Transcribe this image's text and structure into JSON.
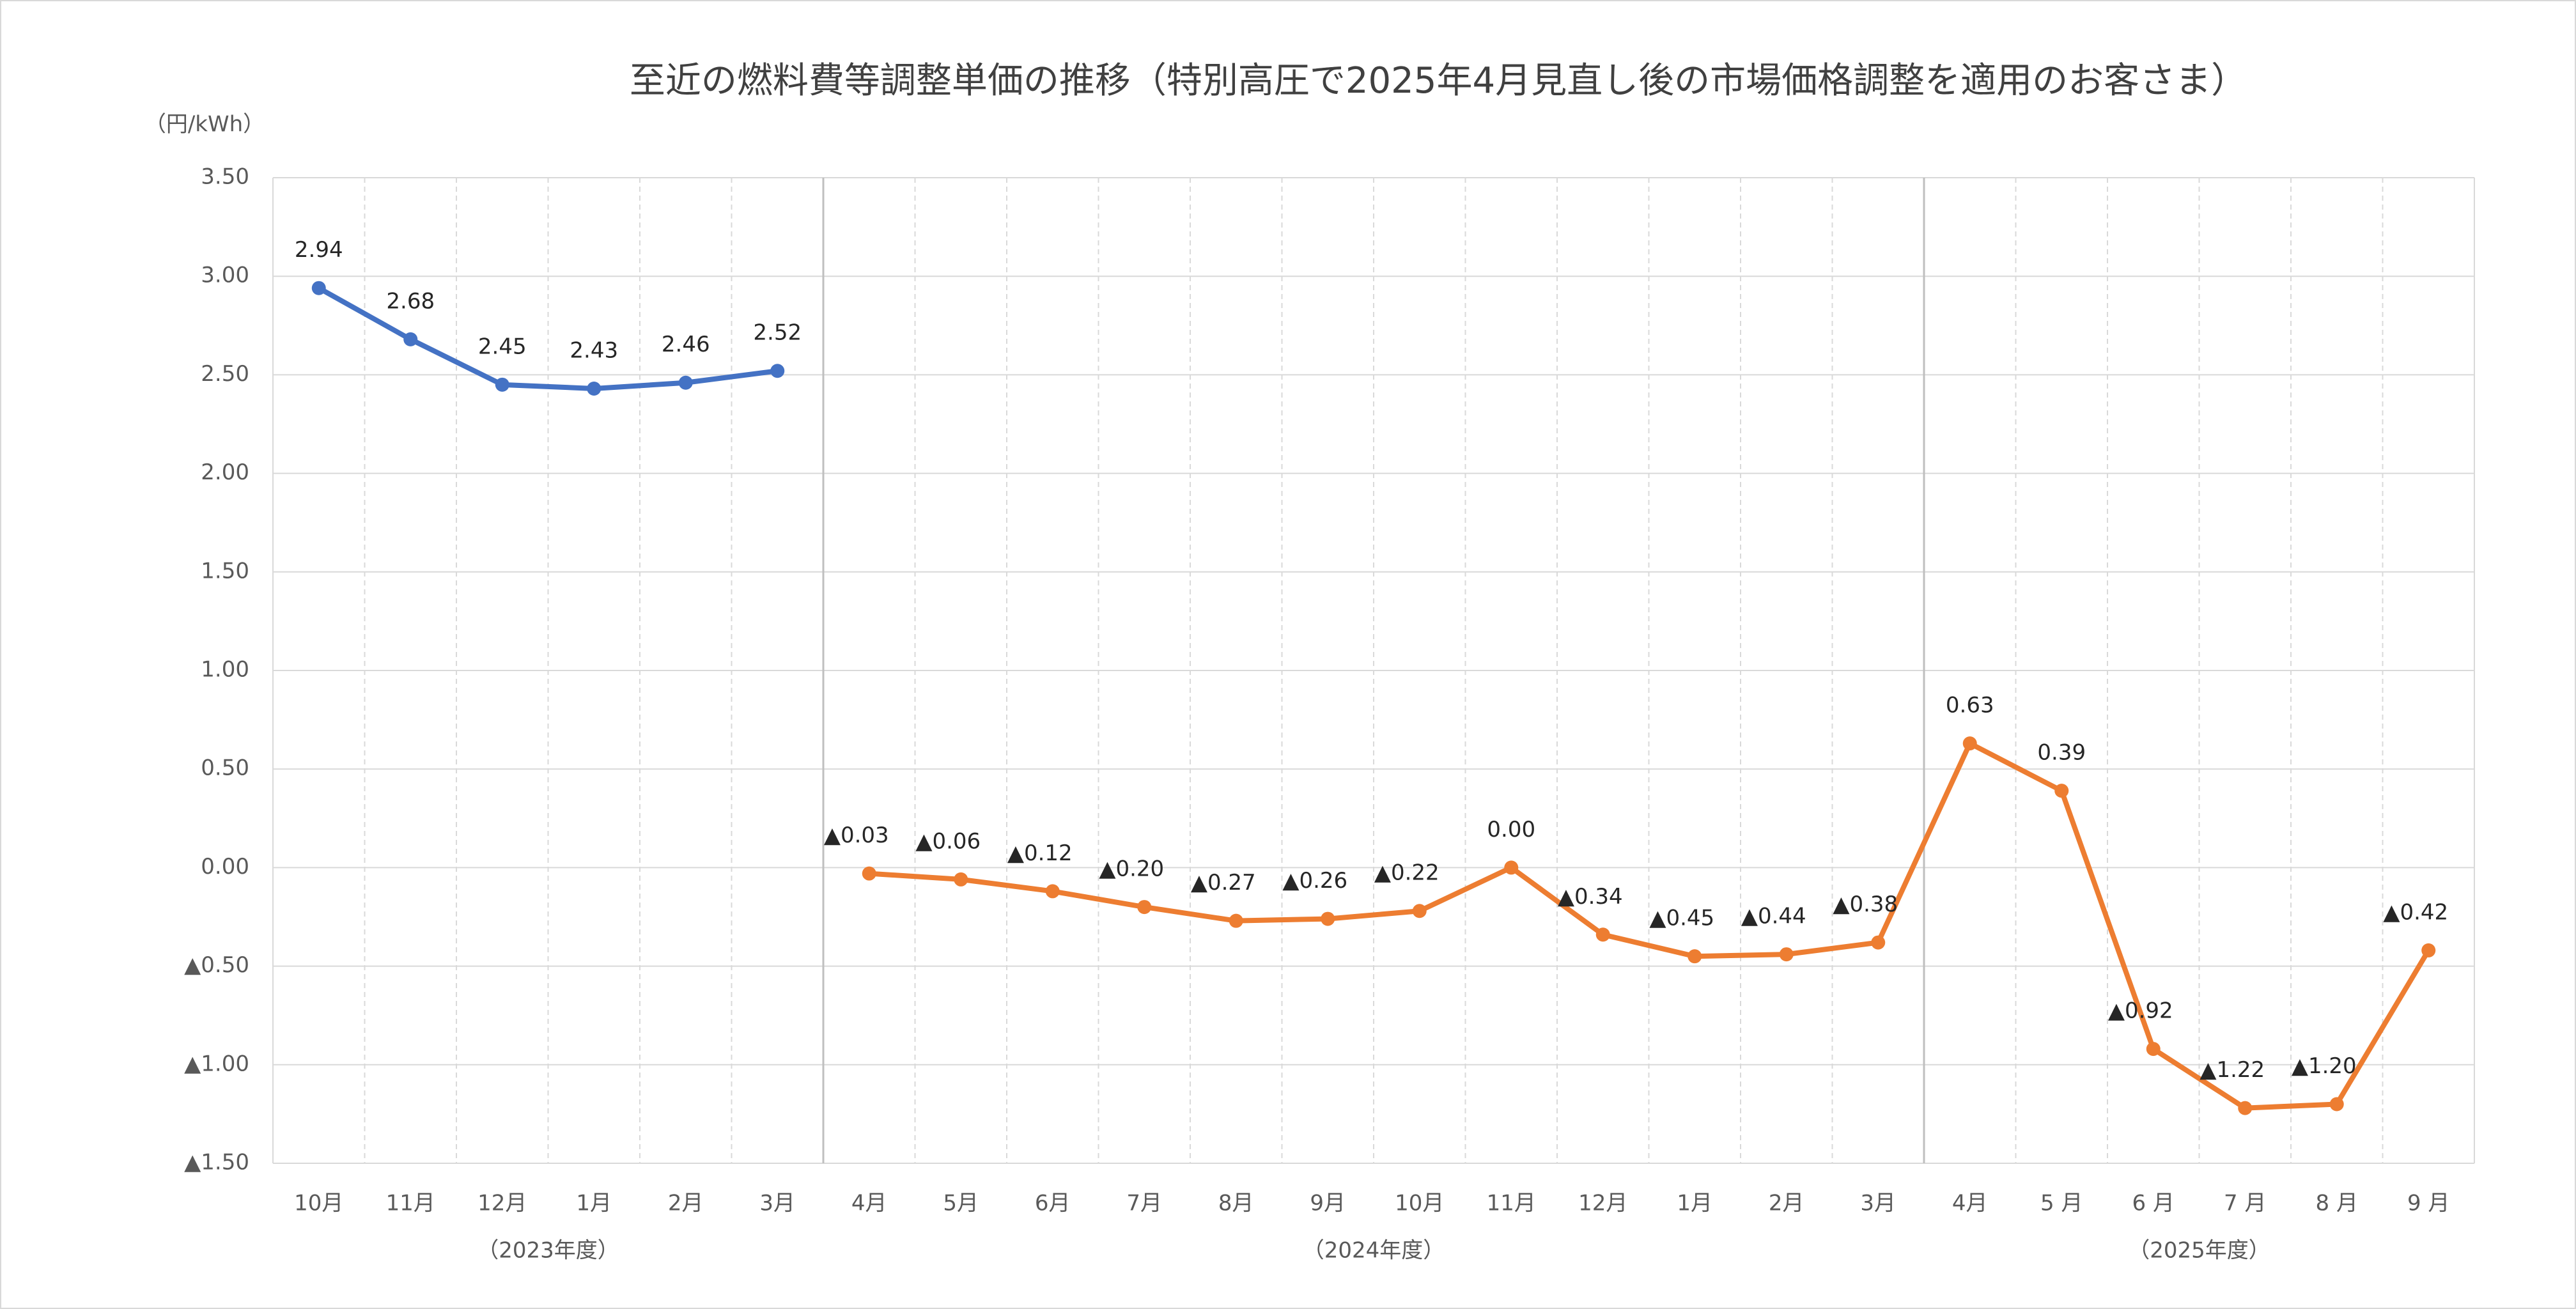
{
  "chart_data": {
    "type": "line",
    "title": "至近の燃料費等調整単価の推移（特別高圧で2025年4月見直し後の市場価格調整を適用のお客さま）",
    "y_label": "（円/kWh）",
    "categories": [
      "10月",
      "11月",
      "12月",
      "1月",
      "2月",
      "3月",
      "4月",
      "5月",
      "6月",
      "7月",
      "8月",
      "9月",
      "10月",
      "11月",
      "12月",
      "1月",
      "2月",
      "3月",
      "4月",
      "5 月",
      "6 月",
      "7 月",
      "8 月",
      "9 月"
    ],
    "groups": [
      {
        "label": "（2023年度）",
        "span": 6
      },
      {
        "label": "（2024年度）",
        "span": 12
      },
      {
        "label": "（2025年度）",
        "span": 6
      }
    ],
    "series": [
      {
        "color": "#4472c4",
        "values": [
          2.94,
          2.68,
          2.45,
          2.43,
          2.46,
          2.52,
          null,
          null,
          null,
          null,
          null,
          null,
          null,
          null,
          null,
          null,
          null,
          null,
          null,
          null,
          null,
          null,
          null,
          null
        ],
        "value_labels": [
          "2.94",
          "2.68",
          "2.45",
          "2.43",
          "2.46",
          "2.52",
          null,
          null,
          null,
          null,
          null,
          null,
          null,
          null,
          null,
          null,
          null,
          null,
          null,
          null,
          null,
          null,
          null,
          null
        ]
      },
      {
        "color": "#ed7d31",
        "values": [
          null,
          null,
          null,
          null,
          null,
          null,
          -0.03,
          -0.06,
          -0.12,
          -0.2,
          -0.27,
          -0.26,
          -0.22,
          0.0,
          -0.34,
          -0.45,
          -0.44,
          -0.38,
          0.63,
          0.39,
          -0.92,
          -1.22,
          -1.2,
          -0.42
        ],
        "value_labels": [
          null,
          null,
          null,
          null,
          null,
          null,
          "▲0.03",
          "▲0.06",
          "▲0.12",
          "▲0.20",
          "▲0.27",
          "▲0.26",
          "▲0.22",
          "0.00",
          "▲0.34",
          "▲0.45",
          "▲0.44",
          "▲0.38",
          "0.63",
          "0.39",
          "▲0.92",
          "▲1.22",
          "▲1.20",
          "▲0.42"
        ]
      }
    ],
    "ylim": [
      -1.5,
      3.5
    ],
    "yticks": [
      {
        "value": 3.5,
        "label": "3.50"
      },
      {
        "value": 3.0,
        "label": "3.00"
      },
      {
        "value": 2.5,
        "label": "2.50"
      },
      {
        "value": 2.0,
        "label": "2.00"
      },
      {
        "value": 1.5,
        "label": "1.50"
      },
      {
        "value": 1.0,
        "label": "1.00"
      },
      {
        "value": 0.5,
        "label": "0.50"
      },
      {
        "value": 0,
        "label": "0.00"
      },
      {
        "value": -0.5,
        "label": "▲0.50"
      },
      {
        "value": -1.0,
        "label": "▲1.00"
      },
      {
        "value": -1.5,
        "label": "▲1.50"
      }
    ],
    "grid": true
  }
}
